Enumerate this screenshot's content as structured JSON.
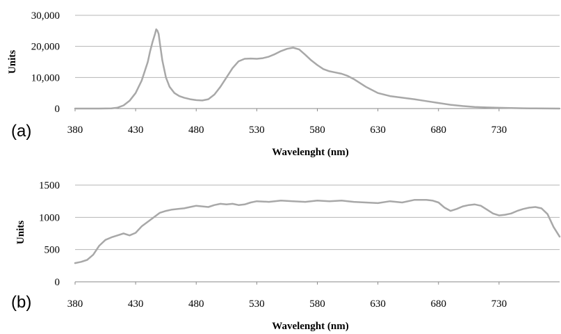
{
  "chart_data": [
    {
      "type": "line",
      "panel_label": "(a)",
      "xlabel": "Wavelenght (nm)",
      "ylabel": "Units",
      "xlim": [
        380,
        780
      ],
      "ylim": [
        0,
        30000
      ],
      "x_ticks": [
        380,
        430,
        480,
        530,
        580,
        630,
        680,
        730
      ],
      "x_tick_labels": [
        "380",
        "430",
        "480",
        "530",
        "580",
        "630",
        "680",
        "730"
      ],
      "y_ticks": [
        0,
        10000,
        20000,
        30000
      ],
      "y_tick_labels": [
        "0",
        "10,000",
        "20,000",
        "30,000"
      ],
      "grid": true,
      "color": "#a8a8a8",
      "series": [
        {
          "x": [
            380,
            400,
            410,
            415,
            420,
            425,
            430,
            435,
            440,
            442,
            444,
            446,
            447,
            448,
            449,
            450,
            452,
            455,
            458,
            462,
            466,
            470,
            475,
            480,
            485,
            490,
            495,
            500,
            505,
            510,
            515,
            520,
            525,
            530,
            535,
            540,
            545,
            550,
            555,
            560,
            565,
            570,
            575,
            580,
            585,
            590,
            595,
            600,
            605,
            610,
            620,
            630,
            640,
            650,
            660,
            670,
            680,
            690,
            700,
            710,
            720,
            730,
            740,
            750,
            760,
            770,
            780
          ],
          "y": [
            0,
            0,
            50,
            300,
            1000,
            2500,
            5000,
            9000,
            15000,
            18500,
            21500,
            24000,
            25500,
            25000,
            24000,
            21000,
            15500,
            10000,
            7000,
            5000,
            4000,
            3500,
            3000,
            2700,
            2600,
            3000,
            4500,
            7000,
            10000,
            13000,
            15200,
            16000,
            16100,
            16000,
            16200,
            16700,
            17500,
            18500,
            19200,
            19600,
            19000,
            17300,
            15500,
            14000,
            12700,
            12000,
            11600,
            11200,
            10500,
            9500,
            7000,
            5000,
            4000,
            3500,
            3000,
            2400,
            1800,
            1200,
            800,
            500,
            350,
            250,
            150,
            100,
            50,
            30,
            0
          ]
        }
      ]
    },
    {
      "type": "line",
      "panel_label": "(b)",
      "xlabel": "Wavelenght (nm)",
      "ylabel": "Units",
      "xlim": [
        380,
        780
      ],
      "ylim": [
        0,
        1500
      ],
      "x_ticks": [
        380,
        430,
        480,
        530,
        580,
        630,
        680,
        730
      ],
      "x_tick_labels": [
        "380",
        "430",
        "480",
        "530",
        "580",
        "630",
        "680",
        "730"
      ],
      "y_ticks": [
        0,
        500,
        1000,
        1500
      ],
      "y_tick_labels": [
        "0",
        "500",
        "1000",
        "1500"
      ],
      "grid": true,
      "color": "#a8a8a8",
      "series": [
        {
          "x": [
            380,
            385,
            390,
            395,
            400,
            405,
            410,
            415,
            420,
            425,
            430,
            435,
            440,
            445,
            450,
            455,
            460,
            465,
            470,
            475,
            480,
            485,
            490,
            495,
            500,
            505,
            510,
            515,
            520,
            525,
            530,
            540,
            550,
            560,
            570,
            580,
            590,
            600,
            610,
            620,
            630,
            640,
            650,
            660,
            670,
            675,
            680,
            685,
            690,
            695,
            700,
            705,
            710,
            715,
            720,
            725,
            730,
            735,
            740,
            745,
            750,
            755,
            760,
            765,
            770,
            775,
            780
          ],
          "y": [
            290,
            310,
            340,
            420,
            560,
            650,
            690,
            720,
            750,
            720,
            760,
            860,
            930,
            1000,
            1070,
            1100,
            1120,
            1130,
            1140,
            1160,
            1180,
            1170,
            1160,
            1190,
            1210,
            1200,
            1210,
            1190,
            1200,
            1230,
            1250,
            1240,
            1260,
            1250,
            1240,
            1260,
            1250,
            1260,
            1240,
            1230,
            1220,
            1250,
            1230,
            1270,
            1270,
            1260,
            1230,
            1150,
            1100,
            1130,
            1170,
            1190,
            1200,
            1180,
            1120,
            1060,
            1030,
            1040,
            1060,
            1100,
            1130,
            1150,
            1160,
            1140,
            1050,
            850,
            700
          ]
        }
      ]
    }
  ]
}
